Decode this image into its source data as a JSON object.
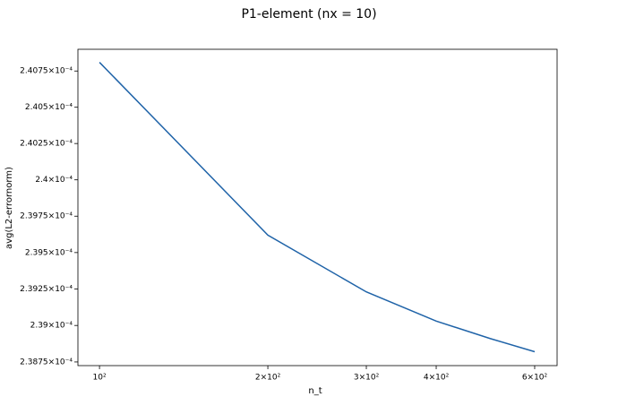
{
  "chart_data": {
    "type": "line",
    "title": "P1-element (nx = 10)",
    "x_label": "n_t",
    "y_label": "avg(L2-errornorm)",
    "x": [
      100,
      200,
      300,
      400,
      500,
      600
    ],
    "series": [
      {
        "color": "#1f63a8",
        "values": [
          0.00024081,
          0.00023962,
          0.00023923,
          0.00023903,
          0.00023891,
          0.00023882
        ]
      }
    ],
    "xscale": "log",
    "yscale": "log",
    "xlim": [
      91.5,
      658
    ],
    "ylim": [
      0.000238725,
      0.0002409
    ],
    "xticks": [
      {
        "value": 100,
        "label": "10²"
      },
      {
        "value": 200,
        "label": "2×10²"
      },
      {
        "value": 300,
        "label": "3×10²"
      },
      {
        "value": 400,
        "label": "4×10²"
      },
      {
        "value": 600,
        "label": "6×10²"
      }
    ],
    "yticks": [
      {
        "value": 0.00023875,
        "label": "2.3875×10⁻⁴"
      },
      {
        "value": 0.000239,
        "label": "2.39×10⁻⁴"
      },
      {
        "value": 0.00023925,
        "label": "2.3925×10⁻⁴"
      },
      {
        "value": 0.0002395,
        "label": "2.395×10⁻⁴"
      },
      {
        "value": 0.00023975,
        "label": "2.3975×10⁻⁴"
      },
      {
        "value": 0.00024,
        "label": "2.4×10⁻⁴"
      },
      {
        "value": 0.00024025,
        "label": "2.4025×10⁻⁴"
      },
      {
        "value": 0.0002405,
        "label": "2.405×10⁻⁴"
      },
      {
        "value": 0.00024075,
        "label": "2.4075×10⁻⁴"
      }
    ]
  }
}
